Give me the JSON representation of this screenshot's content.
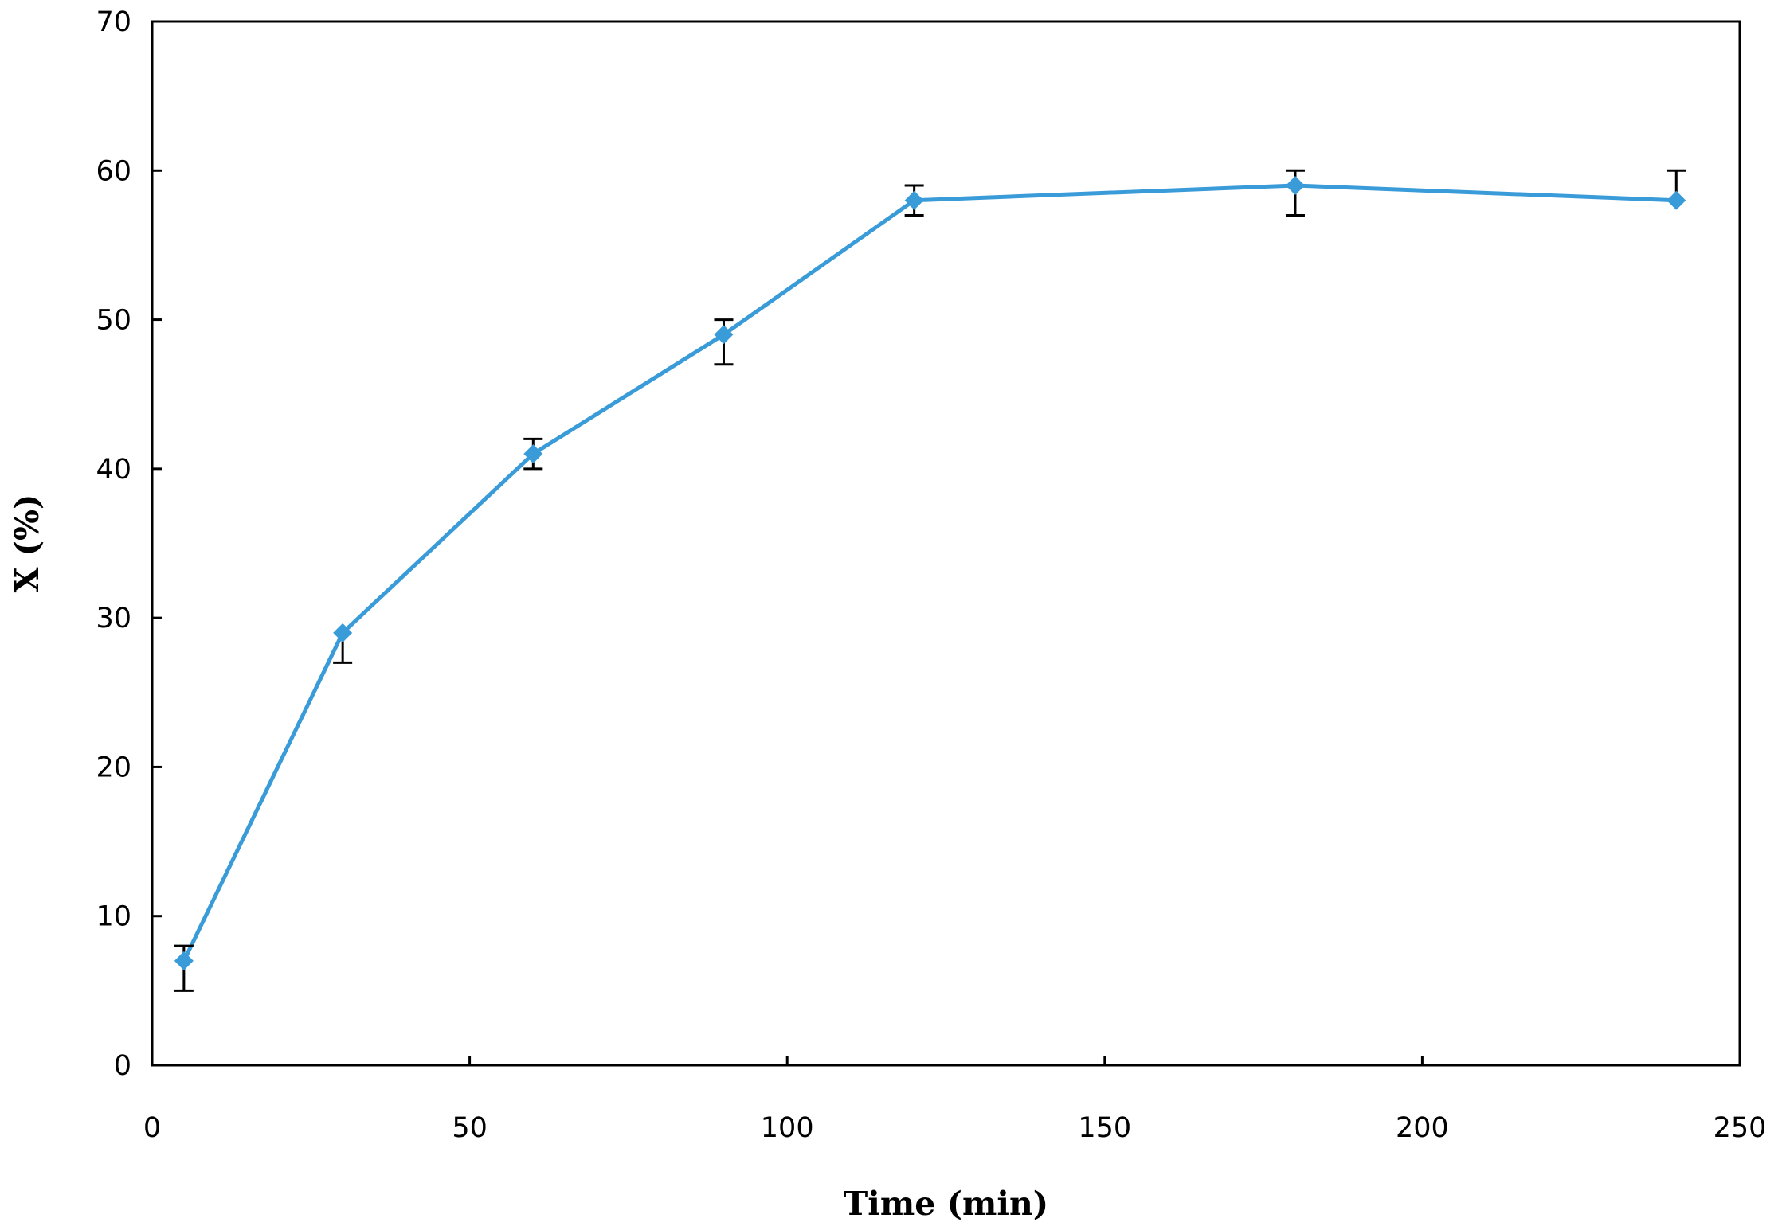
{
  "chart_data": {
    "type": "line",
    "title": "",
    "xlabel": "Time (min)",
    "ylabel": "X (%)",
    "xlim": [
      0,
      250
    ],
    "ylim": [
      0,
      70
    ],
    "x_ticks": [
      0,
      50,
      100,
      150,
      200,
      250
    ],
    "y_ticks": [
      0,
      10,
      20,
      30,
      40,
      50,
      60,
      70
    ],
    "grid": false,
    "legend": "none",
    "series": [
      {
        "color": "#3a9bd9",
        "marker": "diamond",
        "x": [
          5,
          30,
          60,
          90,
          120,
          180,
          240
        ],
        "y": [
          7,
          29,
          41,
          49,
          58,
          59,
          58
        ],
        "error_upper": [
          1,
          0,
          1,
          1,
          1,
          1,
          2
        ],
        "error_lower": [
          2,
          2,
          1,
          2,
          1,
          2,
          0
        ]
      }
    ]
  }
}
